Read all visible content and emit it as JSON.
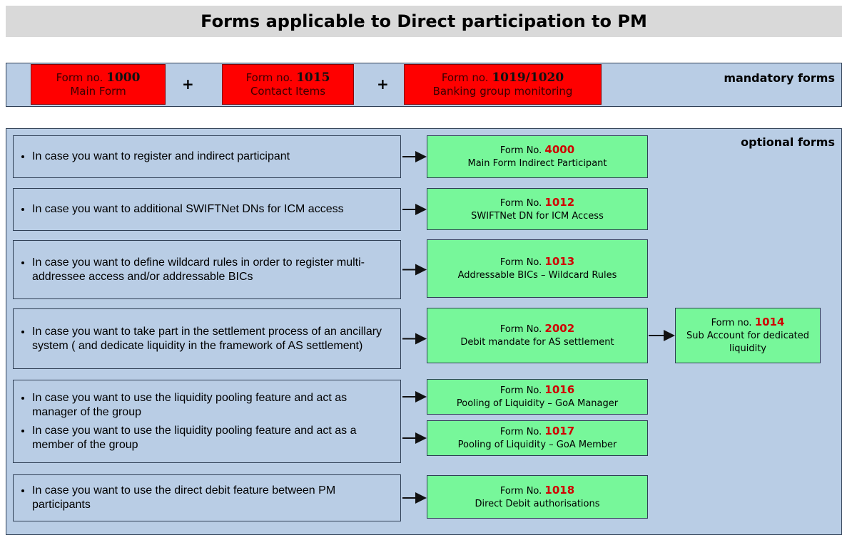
{
  "title": "Forms applicable to Direct participation to PM",
  "mandatory": {
    "label": "mandatory forms",
    "plus": [
      "+",
      "+"
    ],
    "forms": [
      {
        "prefix": "Form no.",
        "number": "1000",
        "name": "Main Form"
      },
      {
        "prefix": "Form no.",
        "number": "1015",
        "name": "Contact Items"
      },
      {
        "prefix": "Form no.",
        "number": "1019/1020",
        "name": "Banking group monitoring"
      }
    ]
  },
  "optional": {
    "label": "optional forms",
    "rows": [
      {
        "conditions": [
          "In case you want to register and indirect participant"
        ],
        "forms": [
          {
            "prefix": "Form No.",
            "number": "4000",
            "name": "Main Form Indirect Participant"
          }
        ]
      },
      {
        "conditions": [
          "In case you want to additional SWIFTNet DNs for ICM access"
        ],
        "forms": [
          {
            "prefix": "Form No.",
            "number": "1012",
            "name": "SWIFTNet DN for ICM Access"
          }
        ]
      },
      {
        "conditions": [
          "In case you want to define wildcard rules in order to register multi-addressee access and/or addressable BICs"
        ],
        "forms": [
          {
            "prefix": "Form No.",
            "number": "1013",
            "name": "Addressable BICs – Wildcard Rules"
          }
        ]
      },
      {
        "conditions": [
          "In case you want to take part in the settlement process of an ancillary system ( and dedicate liquidity in the framework of AS settlement)"
        ],
        "forms": [
          {
            "prefix": "Form No.",
            "number": "2002",
            "name": "Debit mandate for AS settlement"
          }
        ]
      },
      {
        "conditions": [
          "In case you want to use the liquidity pooling feature and act as manager of the group",
          "In case you want to use the liquidity pooling feature and act as a member of the group"
        ],
        "forms": [
          {
            "prefix": "Form No.",
            "number": "1016",
            "name": "Pooling of Liquidity – GoA Manager"
          },
          {
            "prefix": "Form No.",
            "number": "1017",
            "name": "Pooling of Liquidity – GoA Member"
          }
        ]
      },
      {
        "conditions": [
          "In case you want to use the direct debit feature between PM participants"
        ],
        "forms": [
          {
            "prefix": "Form No.",
            "number": "1018",
            "name": "Direct Debit authorisations"
          }
        ]
      }
    ],
    "follow_up": {
      "prefix": "Form no.",
      "number": "1014",
      "name": "Sub Account for dedicated liquidity"
    }
  }
}
